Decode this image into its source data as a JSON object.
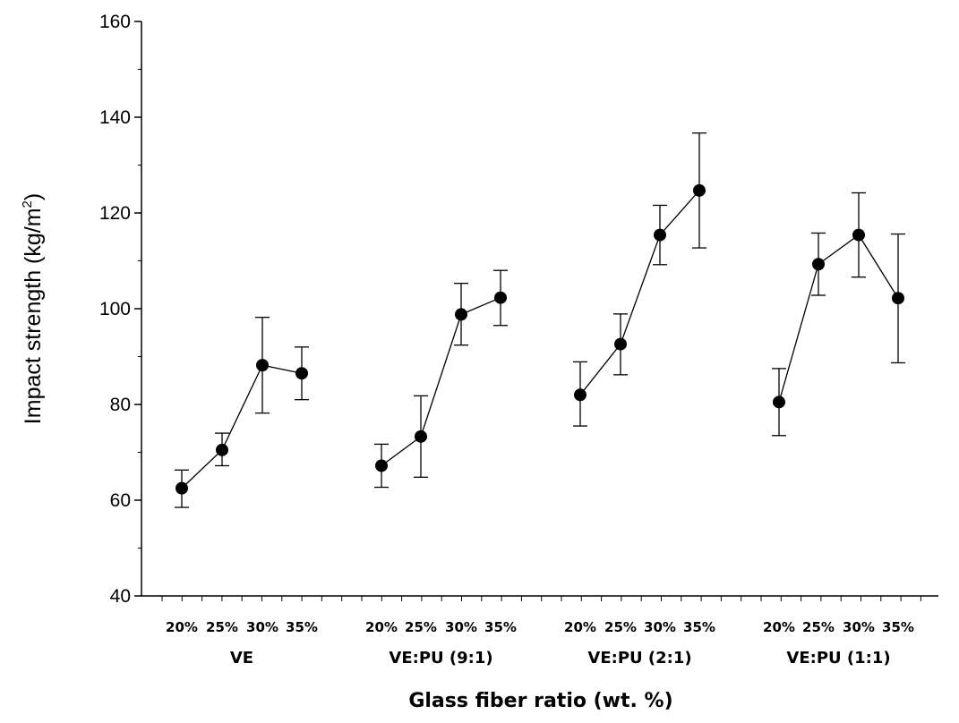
{
  "chart_data": {
    "type": "scatter",
    "title": "",
    "xlabel": "Glass fiber ratio (wt. %)",
    "ylabel": "Impact strength (kg/m",
    "ylabel_sup": "2",
    "ylabel_end": ")",
    "ylim": [
      40,
      160
    ],
    "yticks": [
      "40",
      "60",
      "80",
      "100",
      "120",
      "140",
      "160"
    ],
    "grid": false,
    "groups": [
      {
        "name": "VE",
        "categories": [
          "20%",
          "25%",
          "30%",
          "35%"
        ],
        "values": [
          62.5,
          70.5,
          88.2,
          86.5
        ],
        "err_upper": [
          66.3,
          74.0,
          98.2,
          92.0
        ],
        "err_lower": [
          58.5,
          67.2,
          78.2,
          81.0
        ]
      },
      {
        "name": "VE:PU (9:1)",
        "categories": [
          "20%",
          "25%",
          "30%",
          "35%"
        ],
        "values": [
          67.2,
          73.3,
          98.8,
          102.3
        ],
        "err_upper": [
          71.7,
          81.8,
          105.3,
          108.0
        ],
        "err_lower": [
          62.7,
          64.8,
          92.4,
          96.5
        ]
      },
      {
        "name": "VE:PU (2:1)",
        "categories": [
          "20%",
          "25%",
          "30%",
          "35%"
        ],
        "values": [
          82.0,
          92.6,
          115.4,
          124.7
        ],
        "err_upper": [
          88.9,
          98.9,
          121.6,
          136.7
        ],
        "err_lower": [
          75.5,
          86.2,
          109.2,
          112.7
        ]
      },
      {
        "name": "VE:PU (1:1)",
        "categories": [
          "20%",
          "25%",
          "30%",
          "35%"
        ],
        "values": [
          80.5,
          109.3,
          115.4,
          102.2
        ],
        "err_upper": [
          87.5,
          115.8,
          124.2,
          115.6
        ],
        "err_lower": [
          73.5,
          102.8,
          106.6,
          88.7
        ]
      }
    ]
  }
}
